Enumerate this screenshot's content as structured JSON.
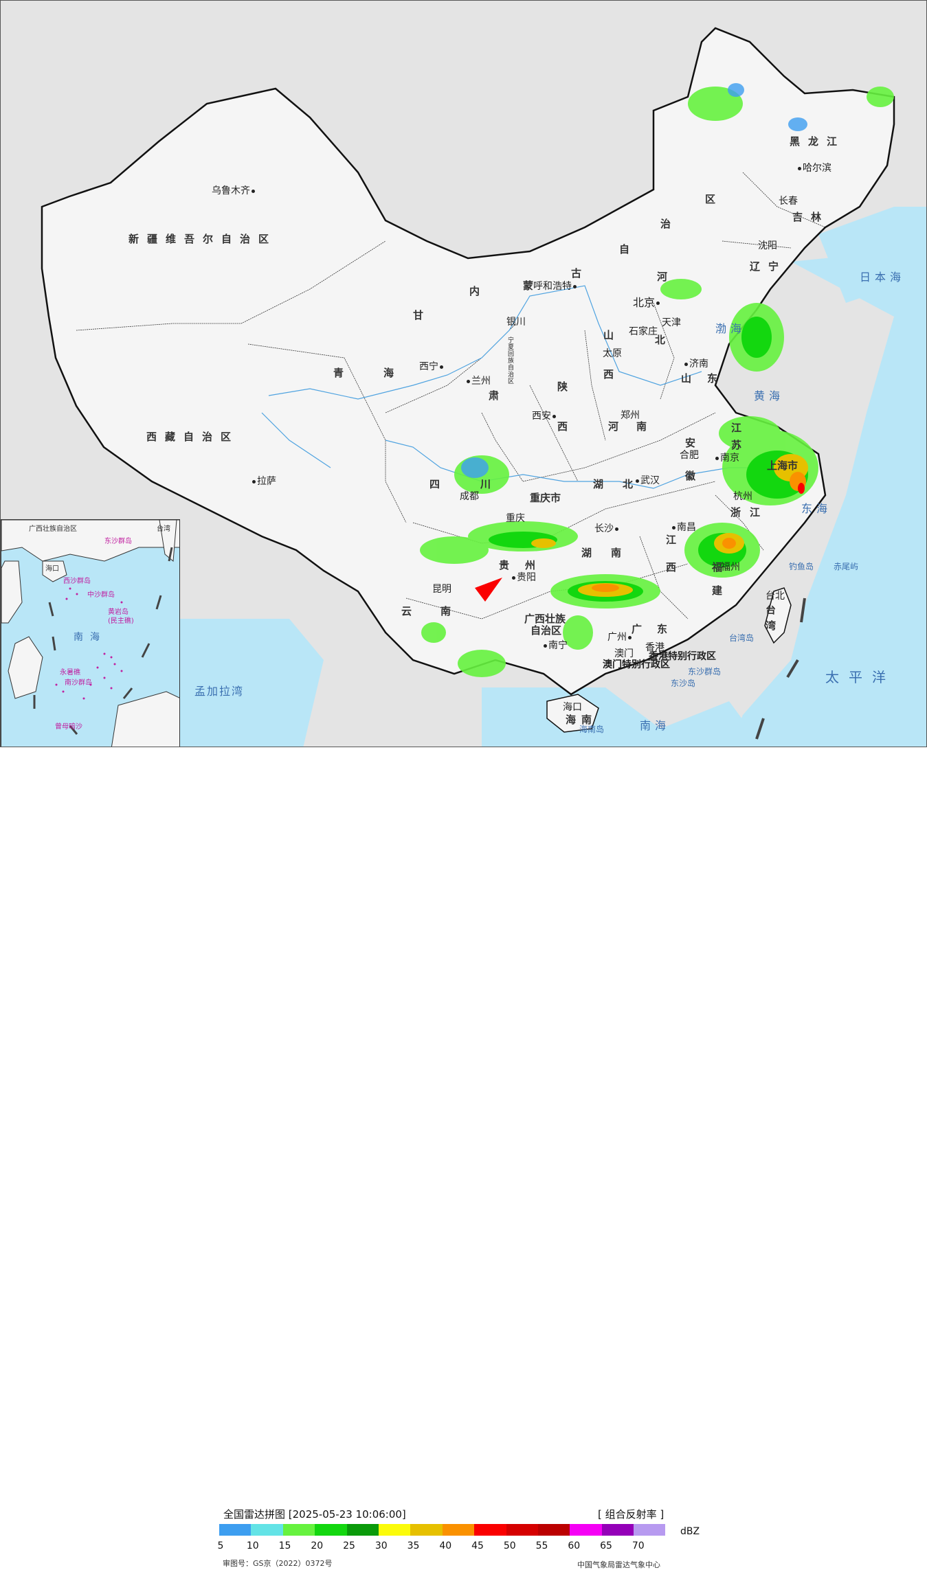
{
  "legend": {
    "title": "全国雷达拼图 [2025-05-23 10:06:00]",
    "product": "[ 组合反射率 ]",
    "unit": "dBZ",
    "colors": [
      "#3d9ef0",
      "#63e3e6",
      "#66f23f",
      "#13d70f",
      "#0a9a0a",
      "#fbfb0a",
      "#e6c000",
      "#fa9100",
      "#fa0000",
      "#d50000",
      "#bb0000",
      "#f500f5",
      "#9400b8",
      "#b79af0"
    ],
    "ticks": [
      "5",
      "10",
      "15",
      "20",
      "25",
      "30",
      "35",
      "40",
      "45",
      "50",
      "55",
      "60",
      "65",
      "70"
    ],
    "approval": "审图号：GS京（2022）0372号",
    "source": "中国气象局雷达气象中心"
  },
  "map": {
    "provinces": {
      "xinjiang": "新疆维吾尔自治区",
      "xizang": "西藏自治区",
      "qinghai_1": "青",
      "qinghai_2": "海",
      "gansu": "甘",
      "sichuan": "四",
      "chuan": "川",
      "yunnan_1": "云",
      "yunnan_2": "南",
      "guizhou_1": "贵",
      "guizhou_2": "州",
      "guangxi": "广西壮族",
      "guangxi_2": "自治区",
      "guangdong_1": "广",
      "guangdong_2": "东",
      "hunan_1": "湖",
      "hunan_2": "南",
      "hubei_1": "湖",
      "hubei_2": "北",
      "henan_1": "河",
      "henan_2": "南",
      "shaanxi_1": "陕",
      "shaanxi_2": "西",
      "shanxi_1": "山",
      "shanxi_2": "西",
      "hebei_1": "河",
      "hebei_2": "北",
      "shandong_1": "山",
      "shandong_2": "东",
      "anhui_1": "安",
      "anhui_2": "徽",
      "jiangsu_1": "江",
      "jiangsu_2": "苏",
      "zhejiang_1": "浙",
      "zhejiang_2": "江",
      "jiangxi_1": "江",
      "jiangxi_2": "西",
      "fujian_1": "福",
      "fujian_2": "建",
      "taiwan_1": "台",
      "taiwan_2": "湾",
      "hainan_1": "海",
      "hainan_2": "南",
      "neimeng_1": "内",
      "neimeng_2": "蒙",
      "neimeng_3": "古",
      "neimeng_4": "自",
      "neimeng_5": "治",
      "neimeng_6": "区",
      "heilongjiang": "黑龙江",
      "jilin": "吉林",
      "liaoning": "辽宁",
      "ningxia": "宁夏回族自治区",
      "chongqing": "重庆市",
      "shanghai": "上海市",
      "gansu_2": "肃"
    },
    "cities": {
      "urumqi": "乌鲁木齐",
      "lhasa": "拉萨",
      "xining": "西宁",
      "lanzhou": "兰州",
      "yinchuan": "银川",
      "hohhot": "呼和浩特",
      "beijing": "北京",
      "tianjin": "天津",
      "shijiazhuang": "石家庄",
      "taiyuan": "太原",
      "jinan": "济南",
      "zhengzhou": "郑州",
      "xian": "西安",
      "chengdu": "成都",
      "chongqing": "重庆",
      "guiyang": "贵阳",
      "kunming": "昆明",
      "nanning": "南宁",
      "guangzhou": "广州",
      "haikou": "海口",
      "changsha": "长沙",
      "wuhan": "武汉",
      "nanchang": "南昌",
      "fuzhou": "福州",
      "hangzhou": "杭州",
      "hefei": "合肥",
      "nanjing": "南京",
      "shenyang": "沈阳",
      "changchun": "长春",
      "harbin": "哈尔滨",
      "taibei": "台北",
      "xianggang": "香港",
      "aomen": "澳门"
    },
    "sar": {
      "hk": "香港特别行政区",
      "macau": "澳门特别行政区"
    },
    "seas": {
      "japan_sea": "日本海",
      "bohai": "渤海",
      "huanghai": "黄海",
      "donghai": "东海",
      "nanhai": "南海",
      "pacific": "太平洋",
      "bengal": "孟加拉湾",
      "taiwan_island": "台湾岛",
      "hainan_island": "海南岛",
      "diaoyu": "钓鱼岛",
      "chiwei": "赤尾屿",
      "dongsha": "东沙群岛",
      "dongsha_2": "东沙岛"
    },
    "inset": {
      "nanhai": "南海",
      "zhongsha": "中沙群岛",
      "huangyan": "黄岩岛",
      "huangyan_2": "(民主礁)",
      "xisha": "西沙群岛",
      "nansha": "南沙群岛",
      "yongshu": "永暑礁",
      "zengmu": "曾母暗沙",
      "dongsha": "东沙群岛",
      "hainan": "海口",
      "taiwan": "台湾",
      "guangxi": "广西壮族自治区"
    }
  }
}
